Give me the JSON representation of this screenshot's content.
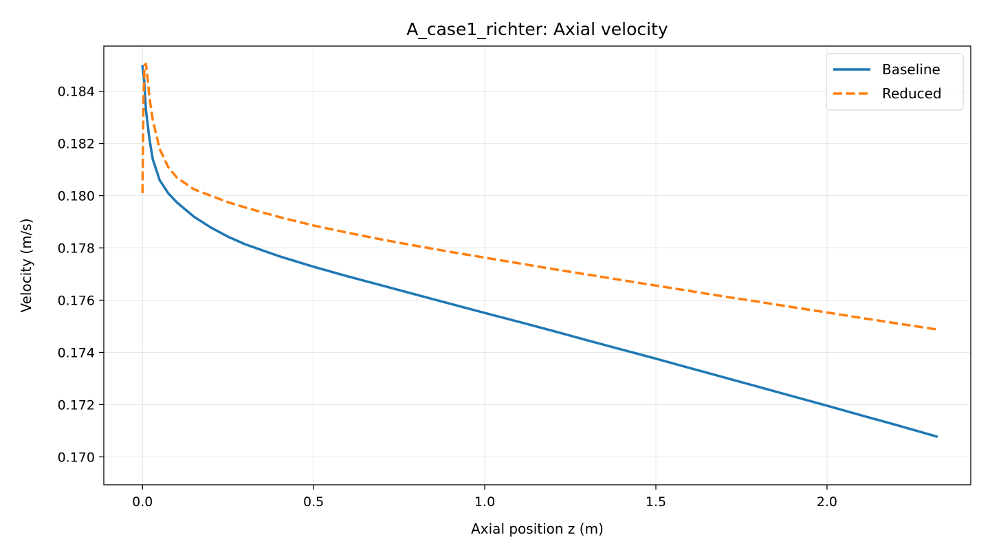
{
  "chart_data": {
    "type": "line",
    "title": "A_case1_richter: Axial velocity",
    "xlabel": "Axial position z (m)",
    "ylabel": "Velocity (m/s)",
    "xlim": [
      -0.113,
      2.42
    ],
    "ylim": [
      0.16893,
      0.18573
    ],
    "x_ticks": [
      0.0,
      0.5,
      1.0,
      1.5,
      2.0
    ],
    "x_tick_labels": [
      "0.0",
      "0.5",
      "1.0",
      "1.5",
      "2.0"
    ],
    "y_ticks": [
      0.17,
      0.172,
      0.174,
      0.176,
      0.178,
      0.18,
      0.182,
      0.184
    ],
    "y_tick_labels": [
      "0.170",
      "0.172",
      "0.174",
      "0.176",
      "0.178",
      "0.180",
      "0.182",
      "0.184"
    ],
    "grid": true,
    "legend_position": "top-right",
    "series": [
      {
        "name": "Baseline",
        "color": "#1f77b4",
        "dash": "solid",
        "x": [
          0.0,
          0.005,
          0.01,
          0.02,
          0.03,
          0.05,
          0.075,
          0.1,
          0.15,
          0.2,
          0.25,
          0.3,
          0.4,
          0.5,
          0.6,
          0.7,
          0.8,
          0.9,
          1.0,
          1.1,
          1.2,
          1.3,
          1.4,
          1.5,
          1.6,
          1.7,
          1.8,
          1.9,
          2.0,
          2.1,
          2.2,
          2.32
        ],
        "y": [
          0.18495,
          0.1844,
          0.1833,
          0.1822,
          0.1814,
          0.1806,
          0.1801,
          0.17975,
          0.1792,
          0.17878,
          0.17843,
          0.17814,
          0.17768,
          0.17728,
          0.17691,
          0.17656,
          0.17621,
          0.17586,
          0.17551,
          0.17517,
          0.17482,
          0.17446,
          0.17411,
          0.17376,
          0.1734,
          0.17304,
          0.17268,
          0.17232,
          0.17196,
          0.17159,
          0.17123,
          0.17078
        ]
      },
      {
        "name": "Reduced",
        "color": "#ff7f0e",
        "dash": "dashed",
        "x": [
          0.0,
          0.003,
          0.006,
          0.01,
          0.015,
          0.02,
          0.03,
          0.05,
          0.075,
          0.1,
          0.15,
          0.2,
          0.25,
          0.3,
          0.4,
          0.5,
          0.6,
          0.7,
          0.8,
          0.9,
          1.0,
          1.1,
          1.2,
          1.3,
          1.4,
          1.5,
          1.6,
          1.7,
          1.8,
          1.9,
          2.0,
          2.1,
          2.2,
          2.32
        ],
        "y": [
          0.1801,
          0.1837,
          0.185,
          0.18505,
          0.1845,
          0.1838,
          0.1829,
          0.1818,
          0.1811,
          0.1807,
          0.18025,
          0.18,
          0.17975,
          0.17955,
          0.17918,
          0.17886,
          0.17858,
          0.17832,
          0.17808,
          0.17785,
          0.17763,
          0.17741,
          0.17719,
          0.17698,
          0.17677,
          0.17656,
          0.17635,
          0.17614,
          0.17594,
          0.17573,
          0.17553,
          0.17532,
          0.17512,
          0.17488
        ]
      }
    ]
  }
}
